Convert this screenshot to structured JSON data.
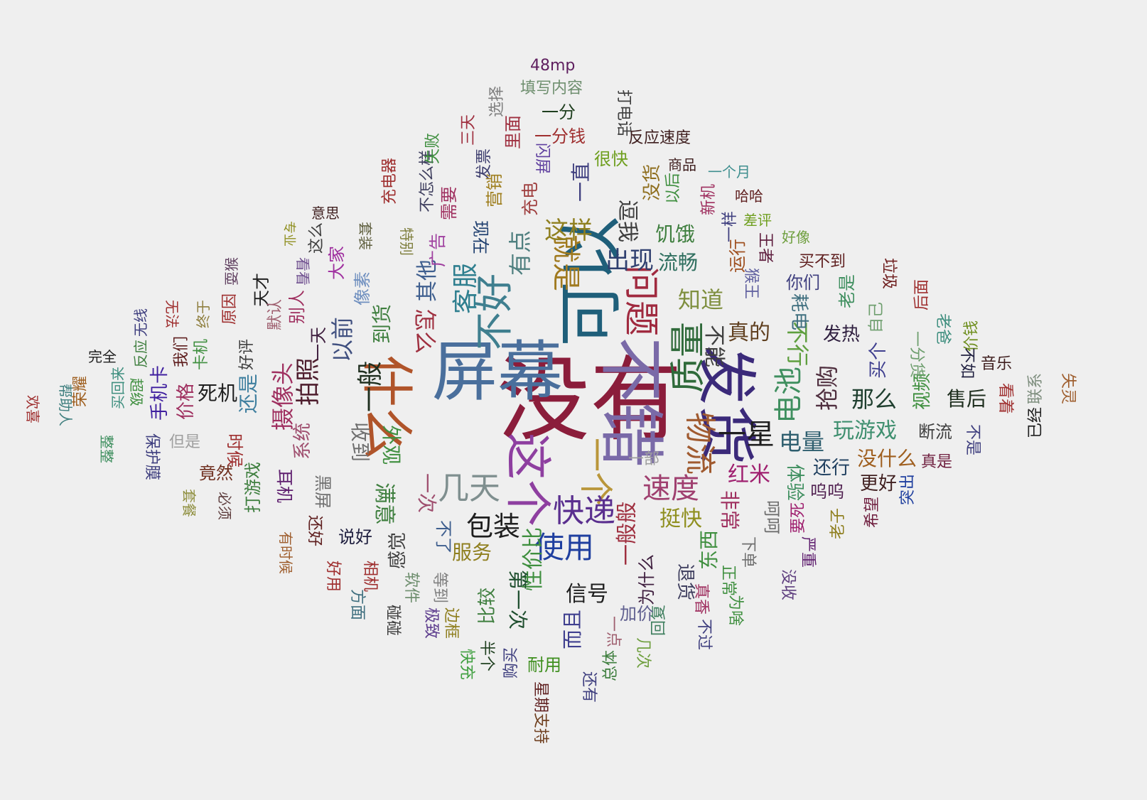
{
  "words": [
    {
      "text": "没有",
      "color": "#8b1d3b",
      "vertical": false
    },
    {
      "text": "屏幕",
      "color": "#4a6f9c",
      "vertical": false
    },
    {
      "text": "可以",
      "color": "#1f5f7a",
      "vertical": false
    },
    {
      "text": "不错",
      "color": "#7a6aa8",
      "vertical": true
    },
    {
      "text": "发货",
      "color": "#3b2a7a",
      "vertical": true
    },
    {
      "text": "什么",
      "color": "#b0542a",
      "vertical": true
    },
    {
      "text": "这个",
      "color": "#8e3fa0",
      "vertical": true
    },
    {
      "text": "一个",
      "color": "#b9963a",
      "vertical": true
    },
    {
      "text": "不好",
      "color": "#3f7f8f",
      "vertical": true
    },
    {
      "text": "质量",
      "color": "#2f6a3a",
      "vertical": true
    },
    {
      "text": "问题",
      "color": "#a02a3f",
      "vertical": true
    },
    {
      "text": "快递",
      "color": "#5a2f8f",
      "vertical": false
    },
    {
      "text": "几天",
      "color": "#7f8f8f",
      "vertical": false
    },
    {
      "text": "包装",
      "color": "#1f1f1f",
      "vertical": false
    },
    {
      "text": "使用",
      "color": "#1f3f9f",
      "vertical": false
    },
    {
      "text": "物流",
      "color": "#a05a2f",
      "vertical": true
    },
    {
      "text": "一星",
      "color": "#1f1f1f",
      "vertical": false
    },
    {
      "text": "速度",
      "color": "#9f3f6f",
      "vertical": false
    },
    {
      "text": "电池",
      "color": "#3f8f5f",
      "vertical": true
    },
    {
      "text": "就是",
      "color": "#a07a1f",
      "vertical": true
    },
    {
      "text": "客服",
      "color": "#2f7f8f",
      "vertical": true
    },
    {
      "text": "一般",
      "color": "#1f2f1f",
      "vertical": true
    },
    {
      "text": "怎么",
      "color": "#9f2f3f",
      "vertical": true
    },
    {
      "text": "摄像头",
      "color": "#9f2f5f",
      "vertical": true
    },
    {
      "text": "拍照",
      "color": "#4f1f2f",
      "vertical": true
    },
    {
      "text": "以前",
      "color": "#3f4f7f",
      "vertical": true
    },
    {
      "text": "这样",
      "color": "#8f7f1f",
      "vertical": false
    },
    {
      "text": "出现",
      "color": "#2f3f6f",
      "vertical": false
    },
    {
      "text": "有点",
      "color": "#4f7f7f",
      "vertical": true
    },
    {
      "text": "其他",
      "color": "#3f5f8f",
      "vertical": true
    },
    {
      "text": "真的",
      "color": "#5f3f1f",
      "vertical": false
    },
    {
      "text": "不能",
      "color": "#3f3f3f",
      "vertical": true
    },
    {
      "text": "知道",
      "color": "#7f8f3f",
      "vertical": false
    },
    {
      "text": "流畅",
      "color": "#2f6f5f",
      "vertical": false
    },
    {
      "text": "饥饿",
      "color": "#3f7f3f",
      "vertical": false
    },
    {
      "text": "一直",
      "color": "#3f3f7f",
      "vertical": true
    },
    {
      "text": "不行",
      "color": "#5f9f3f",
      "vertical": true
    },
    {
      "text": "抢购",
      "color": "#4f2f3f",
      "vertical": true
    },
    {
      "text": "那么",
      "color": "#1f3f2f",
      "vertical": false
    },
    {
      "text": "电量",
      "color": "#2f5f6f",
      "vertical": false
    },
    {
      "text": "玩游戏",
      "color": "#3f8f6f",
      "vertical": false
    },
    {
      "text": "红米",
      "color": "#9f1f6f",
      "vertical": false
    },
    {
      "text": "耗电",
      "color": "#3f6f7f",
      "vertical": true
    },
    {
      "text": "发热",
      "color": "#2f1f3f",
      "vertical": false
    },
    {
      "text": "挺快",
      "color": "#8f8f1f",
      "vertical": false
    },
    {
      "text": "服务",
      "color": "#8f7f1f",
      "vertical": false
    },
    {
      "text": "性价比",
      "color": "#3f8f3f",
      "vertical": true
    },
    {
      "text": "信号",
      "color": "#1f1f1f",
      "vertical": false
    },
    {
      "text": "一般般",
      "color": "#9f2f3f",
      "vertical": true
    },
    {
      "text": "满意",
      "color": "#3f7f3f",
      "vertical": true
    },
    {
      "text": "外观",
      "color": "#3f8f3f",
      "vertical": true
    },
    {
      "text": "一次",
      "color": "#9f4f6f",
      "vertical": true
    },
    {
      "text": "到货",
      "color": "#3f7f3f",
      "vertical": true
    },
    {
      "text": "收到",
      "color": "#6f6f6f",
      "vertical": true
    },
    {
      "text": "系统",
      "color": "#9f4f6f",
      "vertical": true
    },
    {
      "text": "死机",
      "color": "#1f1f1f",
      "vertical": false
    },
    {
      "text": "还是",
      "color": "#3f7f9f",
      "vertical": true
    },
    {
      "text": "价格",
      "color": "#9f2f5f",
      "vertical": true
    },
    {
      "text": "手机卡",
      "color": "#3f1f9f",
      "vertical": true
    },
    {
      "text": "时候",
      "color": "#9f2f2f",
      "vertical": true
    },
    {
      "text": "竟然",
      "color": "#6f2f1f",
      "vertical": false
    },
    {
      "text": "打游戏",
      "color": "#3f7f3f",
      "vertical": true
    },
    {
      "text": "耳机",
      "color": "#5f1f6f",
      "vertical": true
    },
    {
      "text": "黑屏",
      "color": "#6f6f6f",
      "vertical": true
    },
    {
      "text": "说好",
      "color": "#1f1f3f",
      "vertical": false
    },
    {
      "text": "感觉",
      "color": "#3f3f3f",
      "vertical": true
    },
    {
      "text": "不了",
      "color": "#3f5f8f",
      "vertical": true
    },
    {
      "text": "第一次",
      "color": "#1f4f2f",
      "vertical": true
    },
    {
      "text": "而且",
      "color": "#3f3f8f",
      "vertical": true
    },
    {
      "text": "比较",
      "color": "#3f7f3f",
      "vertical": true
    },
    {
      "text": "东西",
      "color": "#3f8f3f",
      "vertical": true
    },
    {
      "text": "非常",
      "color": "#9f2f5f",
      "vertical": true
    },
    {
      "text": "体验",
      "color": "#3f8f5f",
      "vertical": true
    },
    {
      "text": "还行",
      "color": "#1f3f5f",
      "vertical": false
    },
    {
      "text": "没什么",
      "color": "#9f5f1f",
      "vertical": false
    },
    {
      "text": "更好",
      "color": "#3f1f1f",
      "vertical": false
    },
    {
      "text": "呜呜",
      "color": "#4f1f4f",
      "vertical": false
    },
    {
      "text": "呵呵",
      "color": "#6f6f6f",
      "vertical": true
    },
    {
      "text": "售后",
      "color": "#1f2f1f",
      "vertical": false
    },
    {
      "text": "视频",
      "color": "#3f8f3f",
      "vertical": true
    },
    {
      "text": "买个",
      "color": "#3f3f8f",
      "vertical": true
    },
    {
      "text": "断流",
      "color": "#3f3f3f",
      "vertical": false
    },
    {
      "text": "你们",
      "color": "#3f3f7f",
      "vertical": false
    },
    {
      "text": "老是",
      "color": "#3f8f5f",
      "vertical": true
    },
    {
      "text": "垃圾",
      "color": "#6f1f1f",
      "vertical": true
    },
    {
      "text": "后面",
      "color": "#9f2f2f",
      "vertical": true
    },
    {
      "text": "价钱",
      "color": "#6f8f1f",
      "vertical": true
    },
    {
      "text": "音乐",
      "color": "#3f1f1f",
      "vertical": false
    },
    {
      "text": "不如",
      "color": "#1f1f3f",
      "vertical": true
    },
    {
      "text": "看着",
      "color": "#9f2f2f",
      "vertical": true
    },
    {
      "text": "联系",
      "color": "#7f8f7f",
      "vertical": true
    },
    {
      "text": "失灵",
      "color": "#9f5f2f",
      "vertical": true
    },
    {
      "text": "已经",
      "color": "#1f1f1f",
      "vertical": true
    },
    {
      "text": "不是",
      "color": "#3f3f7f",
      "vertical": true
    },
    {
      "text": "真是",
      "color": "#6f1f3f",
      "vertical": false
    },
    {
      "text": "突出",
      "color": "#1f3f9f",
      "vertical": true
    },
    {
      "text": "希望",
      "color": "#6f1f3f",
      "vertical": true
    },
    {
      "text": "老子",
      "color": "#8f7f1f",
      "vertical": true
    },
    {
      "text": "要死",
      "color": "#9f1f6f",
      "vertical": true
    },
    {
      "text": "严重",
      "color": "#5f1f6f",
      "vertical": true
    },
    {
      "text": "没收",
      "color": "#5f3f7f",
      "vertical": true
    },
    {
      "text": "下单",
      "color": "#6f6f6f",
      "vertical": true
    },
    {
      "text": "正常",
      "color": "#3f8f3f",
      "vertical": true
    },
    {
      "text": "为啥",
      "color": "#3f8f3f",
      "vertical": true
    },
    {
      "text": "真香",
      "color": "#9f2f5f",
      "vertical": true
    },
    {
      "text": "不过",
      "color": "#3f3f7f",
      "vertical": true
    },
    {
      "text": "退货",
      "color": "#3f3f5f",
      "vertical": true
    },
    {
      "text": "回复",
      "color": "#3f7f5f",
      "vertical": true
    },
    {
      "text": "几次",
      "color": "#6f9f3f",
      "vertical": true
    },
    {
      "text": "为什么",
      "color": "#3f1f3f",
      "vertical": true
    },
    {
      "text": "加价",
      "color": "#5f5f8f",
      "vertical": true
    },
    {
      "text": "一点",
      "color": "#9f5f6f",
      "vertical": true
    },
    {
      "text": "总体",
      "color": "#3f7f3f",
      "vertical": true
    },
    {
      "text": "还有",
      "color": "#3f3f7f",
      "vertical": true
    },
    {
      "text": "耐用",
      "color": "#3f8f1f",
      "vertical": false
    },
    {
      "text": "购买",
      "color": "#3f3f7f",
      "vertical": true
    },
    {
      "text": "星期",
      "color": "#5f1f1f",
      "vertical": true
    },
    {
      "text": "支持",
      "color": "#6f3f1f",
      "vertical": true
    },
    {
      "text": "半个",
      "color": "#1f3f1f",
      "vertical": true
    },
    {
      "text": "快充",
      "color": "#3f9f3f",
      "vertical": true
    },
    {
      "text": "边框",
      "color": "#8f7f1f",
      "vertical": true
    },
    {
      "text": "等到",
      "color": "#7f7f7f",
      "vertical": true
    },
    {
      "text": "极致",
      "color": "#5f3f8f",
      "vertical": true
    },
    {
      "text": "软件",
      "color": "#6f8f6f",
      "vertical": true
    },
    {
      "text": "碰碰",
      "color": "#3f3f3f",
      "vertical": true
    },
    {
      "text": "相机",
      "color": "#9f2f2f",
      "vertical": true
    },
    {
      "text": "方面",
      "color": "#3f6f7f",
      "vertical": true
    },
    {
      "text": "好用",
      "color": "#9f2f2f",
      "vertical": true
    },
    {
      "text": "还好",
      "color": "#5f1f1f",
      "vertical": true
    },
    {
      "text": "有时候",
      "color": "#9f5f2f",
      "vertical": true
    },
    {
      "text": "必须",
      "color": "#5f3f3f",
      "vertical": true
    },
    {
      "text": "套餐",
      "color": "#8f8f3f",
      "vertical": true
    },
    {
      "text": "保护膜",
      "color": "#3f3f7f",
      "vertical": true
    },
    {
      "text": "但是",
      "color": "#9f9f9f",
      "vertical": false
    },
    {
      "text": "整整",
      "color": "#3f8f5f",
      "vertical": true
    },
    {
      "text": "买回来",
      "color": "#3f8f7f",
      "vertical": true
    },
    {
      "text": "超级",
      "color": "#3f8f3f",
      "vertical": true
    },
    {
      "text": "荣耀",
      "color": "#9f5f1f",
      "vertical": true
    },
    {
      "text": "帮助人",
      "color": "#3f7f7f",
      "vertical": true
    },
    {
      "text": "欢喜",
      "color": "#9f2f2f",
      "vertical": true
    },
    {
      "text": "完全",
      "color": "#1f1f1f",
      "vertical": false
    },
    {
      "text": "无线",
      "color": "#3f3f7f",
      "vertical": true
    },
    {
      "text": "反应",
      "color": "#3f7f3f",
      "vertical": true
    },
    {
      "text": "无法",
      "color": "#9f2f2f",
      "vertical": true
    },
    {
      "text": "我们",
      "color": "#5f1f1f",
      "vertical": true
    },
    {
      "text": "卡机",
      "color": "#3f8f3f",
      "vertical": true
    },
    {
      "text": "终于",
      "color": "#8f7f3f",
      "vertical": true
    },
    {
      "text": "原因",
      "color": "#9f2f2f",
      "vertical": true
    },
    {
      "text": "好评",
      "color": "#3f3f3f",
      "vertical": true
    },
    {
      "text": "天才",
      "color": "#1f1f1f",
      "vertical": true
    },
    {
      "text": "耍猴",
      "color": "#5f3f5f",
      "vertical": true
    },
    {
      "text": "默认",
      "color": "#9f5f6f",
      "vertical": true
    },
    {
      "text": "看看",
      "color": "#6f4f8f",
      "vertical": true
    },
    {
      "text": "专业",
      "color": "#8f8f1f",
      "vertical": true
    },
    {
      "text": "别人",
      "color": "#9f2f5f",
      "vertical": true
    },
    {
      "text": "一天",
      "color": "#3f1f3f",
      "vertical": true
    },
    {
      "text": "大家",
      "color": "#9f2f9f",
      "vertical": true
    },
    {
      "text": "这么",
      "color": "#3f3f3f",
      "vertical": true
    },
    {
      "text": "意思",
      "color": "#3f1f1f",
      "vertical": false
    },
    {
      "text": "像素",
      "color": "#6f8fbf",
      "vertical": true
    },
    {
      "text": "套装",
      "color": "#5f5f3f",
      "vertical": true
    },
    {
      "text": "特别",
      "color": "#7f7f3f",
      "vertical": true
    },
    {
      "text": "广告",
      "color": "#9f3f9f",
      "vertical": true
    },
    {
      "text": "现在",
      "color": "#1f3f6f",
      "vertical": true
    },
    {
      "text": "需要",
      "color": "#9f2f5f",
      "vertical": true
    },
    {
      "text": "不怎么样",
      "color": "#3f3f5f",
      "vertical": true
    },
    {
      "text": "充电器",
      "color": "#9f2f2f",
      "vertical": true
    },
    {
      "text": "失败",
      "color": "#3f8f3f",
      "vertical": true
    },
    {
      "text": "三天",
      "color": "#9f2f3f",
      "vertical": true
    },
    {
      "text": "选择",
      "color": "#7f7f7f",
      "vertical": true
    },
    {
      "text": "发票",
      "color": "#3f3f6f",
      "vertical": true
    },
    {
      "text": "营销",
      "color": "#9f7f1f",
      "vertical": true
    },
    {
      "text": "充电",
      "color": "#9f3f3f",
      "vertical": true
    },
    {
      "text": "里面",
      "color": "#9f2f3f",
      "vertical": true
    },
    {
      "text": "闪屏",
      "color": "#5f3f9f",
      "vertical": true
    },
    {
      "text": "一分钱",
      "color": "#9f2f2f",
      "vertical": false
    },
    {
      "text": "一分",
      "color": "#1f3f1f",
      "vertical": false
    },
    {
      "text": "填写内容",
      "color": "#6f8f6f",
      "vertical": false
    },
    {
      "text": "48mp",
      "color": "#5f1f5f",
      "vertical": false
    },
    {
      "text": "打电话",
      "color": "#3f3f3f",
      "vertical": true
    },
    {
      "text": "反应速度",
      "color": "#3f1f1f",
      "vertical": false
    },
    {
      "text": "很快",
      "color": "#6f9f1f",
      "vertical": false
    },
    {
      "text": "没货",
      "color": "#8f6f1f",
      "vertical": true
    },
    {
      "text": "商品",
      "color": "#3f1f1f",
      "vertical": false
    },
    {
      "text": "一个月",
      "color": "#3f8f8f",
      "vertical": false
    },
    {
      "text": "以后",
      "color": "#3f8f3f",
      "vertical": true
    },
    {
      "text": "新机",
      "color": "#9f2f5f",
      "vertical": true
    },
    {
      "text": "哈哈",
      "color": "#5f1f1f",
      "vertical": false
    },
    {
      "text": "一样",
      "color": "#3f3f7f",
      "vertical": true
    },
    {
      "text": "差评",
      "color": "#6f9f1f",
      "vertical": false
    },
    {
      "text": "运行",
      "color": "#9f4f1f",
      "vertical": true
    },
    {
      "text": "王者",
      "color": "#5f1f3f",
      "vertical": true
    },
    {
      "text": "好像",
      "color": "#6f9f3f",
      "vertical": false
    },
    {
      "text": "买不到",
      "color": "#5f1f1f",
      "vertical": false
    },
    {
      "text": "猴王",
      "color": "#5f5f9f",
      "vertical": true
    },
    {
      "text": "自己",
      "color": "#6f9f6f",
      "vertical": true
    },
    {
      "text": "一分货",
      "color": "#6f9f6f",
      "vertical": true
    },
    {
      "text": "老爸",
      "color": "#3f8f7f",
      "vertical": true
    },
    {
      "text": "逗我",
      "color": "#3f3f3f",
      "vertical": true
    },
    {
      "text": "一部",
      "color": "#9f9f9f",
      "vertical": false
    }
  ]
}
